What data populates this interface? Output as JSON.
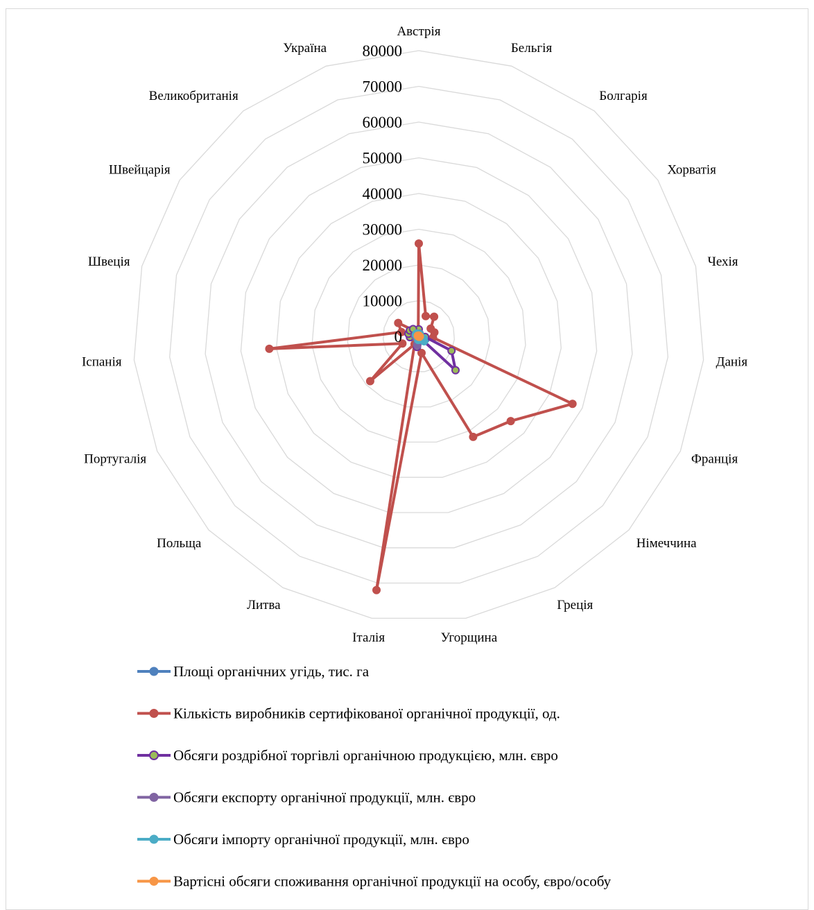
{
  "chart_data": {
    "type": "radar",
    "title": "",
    "categories": [
      "Австрія",
      "Бельгія",
      "Болгарія",
      "Хорватія",
      "Чехія",
      "Данія",
      "Франція",
      "Німеччина",
      "Греція",
      "Угорщина",
      "Італія",
      "Литва",
      "Польща",
      "Португалія",
      "Іспанія",
      "Швеція",
      "Швейцарія",
      "Великобританія",
      "Україна"
    ],
    "rlim": [
      0,
      80000
    ],
    "ticks": [
      0,
      10000,
      20000,
      30000,
      40000,
      50000,
      60000,
      70000,
      80000
    ],
    "grid": true,
    "legend_position": "bottom",
    "series": [
      {
        "name": "Площі органічних угідь, тис. га",
        "color": "#4f81bd",
        "values": [
          670,
          90,
          160,
          100,
          540,
          260,
          2030,
          1520,
          490,
          300,
          1990,
          240,
          500,
          210,
          2240,
          610,
          160,
          460,
          290
        ]
      },
      {
        "name": "Кількість виробників сертифікованої органічної продукції, од.",
        "color": "#c0504d",
        "values": [
          26000,
          6000,
          7000,
          4000,
          4500,
          4000,
          47000,
          35000,
          32000,
          4700,
          72000,
          2500,
          18500,
          5000,
          42000,
          5000,
          6900,
          2000,
          500
        ]
      },
      {
        "name": "Обсяги роздрібної торгівлі органічною продукцією, млн. євро",
        "color": "#7030a0",
        "marker_fill": "#9bbb59",
        "values": [
          2000,
          800,
          30,
          100,
          200,
          1800,
          10000,
          14000,
          100,
          30,
          3000,
          50,
          200,
          100,
          2500,
          3000,
          3000,
          2600,
          30
        ]
      },
      {
        "name": "Обсяги експорту органічної продукції, млн. євро",
        "color": "#8064a2",
        "values": [
          500,
          800,
          100,
          50,
          150,
          450,
          800,
          1000,
          100,
          150,
          2500,
          50,
          200,
          100,
          1000,
          800,
          400,
          1000,
          100
        ]
      },
      {
        "name": "Обсяги імпорту органічної продукції, млн. євро",
        "color": "#4bacc6",
        "values": [
          200,
          700,
          50,
          50,
          200,
          400,
          1500,
          2000,
          100,
          50,
          1000,
          50,
          200,
          100,
          400,
          600,
          1000,
          1000,
          50
        ]
      },
      {
        "name": "Вартісні обсяги споживання органічної продукції на особу, євро/особу",
        "color": "#f79646",
        "values": [
          230,
          90,
          20,
          20,
          20,
          300,
          160,
          180,
          20,
          20,
          50,
          20,
          20,
          20,
          50,
          230,
          340,
          40,
          20
        ]
      }
    ]
  }
}
